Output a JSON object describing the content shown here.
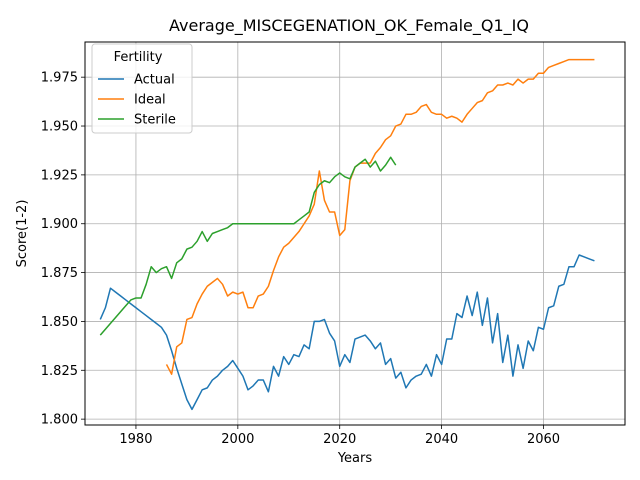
{
  "chart_data": {
    "type": "line",
    "title": "Average_MISCEGENATION_OK_Female_Q1_IQ",
    "xlabel": "Years",
    "ylabel": "Score(1-2)",
    "xlim": [
      1970,
      2076
    ],
    "ylim": [
      1.797,
      1.993
    ],
    "x_ticks": [
      1980,
      2000,
      2020,
      2040,
      2060
    ],
    "y_ticks": [
      1.8,
      1.825,
      1.85,
      1.875,
      1.9,
      1.925,
      1.95,
      1.975
    ],
    "x_tick_labels": [
      "1980",
      "2000",
      "2020",
      "2040",
      "2060"
    ],
    "y_tick_labels": [
      "1.800",
      "1.825",
      "1.850",
      "1.875",
      "1.900",
      "1.925",
      "1.950",
      "1.975"
    ],
    "grid": true,
    "legend": {
      "title": "Fertility",
      "placement": "top-left"
    },
    "series": [
      {
        "name": "Actual",
        "color": "#1f77b4",
        "x": [
          1973,
          1974,
          1975,
          1976,
          1977,
          1978,
          1979,
          1980,
          1981,
          1982,
          1983,
          1984,
          1985,
          1986,
          1987,
          1988,
          1989,
          1990,
          1991,
          1992,
          1993,
          1994,
          1995,
          1996,
          1997,
          1998,
          1999,
          2000,
          2001,
          2002,
          2003,
          2004,
          2005,
          2006,
          2007,
          2008,
          2009,
          2010,
          2011,
          2012,
          2013,
          2014,
          2015,
          2016,
          2017,
          2018,
          2019,
          2020,
          2021,
          2022,
          2023,
          2024,
          2025,
          2026,
          2027,
          2028,
          2029,
          2030,
          2031,
          2032,
          2033,
          2034,
          2035,
          2036,
          2037,
          2038,
          2039,
          2040,
          2041,
          2042,
          2043,
          2044,
          2045,
          2046,
          2047,
          2048,
          2049,
          2050,
          2051,
          2052,
          2053,
          2054,
          2055,
          2056,
          2057,
          2058,
          2059,
          2060,
          2061,
          2062,
          2063,
          2064,
          2065,
          2066,
          2067,
          2068,
          2069,
          2070
        ],
        "y": [
          1.851,
          1.857,
          1.867,
          1.865,
          1.863,
          1.861,
          1.859,
          1.857,
          1.855,
          1.853,
          1.851,
          1.849,
          1.847,
          1.843,
          1.835,
          1.826,
          1.818,
          1.81,
          1.805,
          1.81,
          1.815,
          1.816,
          1.82,
          1.822,
          1.825,
          1.827,
          1.83,
          1.826,
          1.822,
          1.815,
          1.817,
          1.82,
          1.82,
          1.814,
          1.827,
          1.822,
          1.832,
          1.828,
          1.833,
          1.832,
          1.838,
          1.836,
          1.85,
          1.85,
          1.851,
          1.844,
          1.84,
          1.827,
          1.833,
          1.829,
          1.841,
          1.842,
          1.843,
          1.84,
          1.836,
          1.839,
          1.828,
          1.831,
          1.821,
          1.824,
          1.816,
          1.82,
          1.822,
          1.823,
          1.828,
          1.822,
          1.833,
          1.828,
          1.841,
          1.841,
          1.854,
          1.852,
          1.863,
          1.853,
          1.865,
          1.848,
          1.862,
          1.839,
          1.854,
          1.829,
          1.843,
          1.822,
          1.838,
          1.826,
          1.84,
          1.835,
          1.847,
          1.846,
          1.857,
          1.858,
          1.868,
          1.869,
          1.878,
          1.878,
          1.884,
          1.883,
          1.882,
          1.881
        ]
      },
      {
        "name": "Ideal",
        "color": "#ff7f0e",
        "x": [
          1986,
          1987,
          1988,
          1989,
          1990,
          1991,
          1992,
          1993,
          1994,
          1995,
          1996,
          1997,
          1998,
          1999,
          2000,
          2001,
          2002,
          2003,
          2004,
          2005,
          2006,
          2007,
          2008,
          2009,
          2010,
          2011,
          2012,
          2013,
          2014,
          2015,
          2016,
          2017,
          2018,
          2019,
          2020,
          2021,
          2022,
          2023,
          2024,
          2025,
          2026,
          2027,
          2028,
          2029,
          2030,
          2031,
          2032,
          2033,
          2034,
          2035,
          2036,
          2037,
          2038,
          2039,
          2040,
          2041,
          2042,
          2043,
          2044,
          2045,
          2046,
          2047,
          2048,
          2049,
          2050,
          2051,
          2052,
          2053,
          2054,
          2055,
          2056,
          2057,
          2058,
          2059,
          2060,
          2061,
          2062,
          2063,
          2064,
          2065,
          2066,
          2067,
          2068,
          2069,
          2070
        ],
        "y": [
          1.828,
          1.823,
          1.837,
          1.839,
          1.851,
          1.852,
          1.859,
          1.864,
          1.868,
          1.87,
          1.872,
          1.869,
          1.863,
          1.865,
          1.864,
          1.865,
          1.857,
          1.857,
          1.863,
          1.864,
          1.868,
          1.876,
          1.883,
          1.888,
          1.89,
          1.893,
          1.896,
          1.9,
          1.904,
          1.91,
          1.927,
          1.912,
          1.906,
          1.906,
          1.894,
          1.897,
          1.922,
          1.929,
          1.931,
          1.931,
          1.931,
          1.936,
          1.939,
          1.943,
          1.945,
          1.95,
          1.951,
          1.956,
          1.956,
          1.957,
          1.96,
          1.961,
          1.957,
          1.956,
          1.956,
          1.954,
          1.955,
          1.954,
          1.952,
          1.956,
          1.959,
          1.962,
          1.963,
          1.967,
          1.968,
          1.971,
          1.971,
          1.972,
          1.971,
          1.974,
          1.972,
          1.974,
          1.974,
          1.977,
          1.977,
          1.98,
          1.981,
          1.982,
          1.983,
          1.984,
          1.984,
          1.984,
          1.984,
          1.984,
          1.984
        ]
      },
      {
        "name": "Sterile",
        "color": "#2ca02c",
        "x": [
          1973,
          1974,
          1975,
          1976,
          1977,
          1978,
          1979,
          1980,
          1981,
          1982,
          1983,
          1984,
          1985,
          1986,
          1987,
          1988,
          1989,
          1990,
          1991,
          1992,
          1993,
          1994,
          1995,
          1996,
          1997,
          1998,
          1999,
          2000,
          2001,
          2002,
          2003,
          2004,
          2005,
          2006,
          2007,
          2008,
          2009,
          2010,
          2011,
          2012,
          2013,
          2014,
          2015,
          2016,
          2017,
          2018,
          2019,
          2020,
          2021,
          2022,
          2023,
          2024,
          2025,
          2026,
          2027,
          2028,
          2029,
          2030,
          2031
        ],
        "y": [
          1.843,
          1.846,
          1.849,
          1.852,
          1.855,
          1.858,
          1.861,
          1.862,
          1.862,
          1.869,
          1.878,
          1.875,
          1.877,
          1.878,
          1.872,
          1.88,
          1.882,
          1.887,
          1.888,
          1.891,
          1.896,
          1.891,
          1.895,
          1.896,
          1.897,
          1.898,
          1.9,
          1.9,
          1.9,
          1.9,
          1.9,
          1.9,
          1.9,
          1.9,
          1.9,
          1.9,
          1.9,
          1.9,
          1.9,
          1.902,
          1.904,
          1.906,
          1.916,
          1.92,
          1.922,
          1.921,
          1.924,
          1.926,
          1.924,
          1.923,
          1.929,
          1.931,
          1.933,
          1.929,
          1.932,
          1.927,
          1.93,
          1.934,
          1.93
        ]
      }
    ]
  }
}
